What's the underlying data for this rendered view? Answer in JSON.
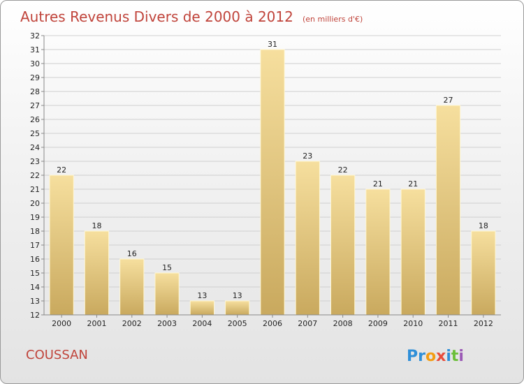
{
  "title": "Autres Revenus Divers de 2000 à 2012",
  "subtitle": "(en milliers d'€)",
  "place": "COUSSAN",
  "brand": {
    "name": "Proxiti",
    "letters": [
      {
        "ch": "P",
        "color": "#2f8fd8"
      },
      {
        "ch": "r",
        "color": "#2f8fd8"
      },
      {
        "ch": "o",
        "color": "#f39c12"
      },
      {
        "ch": "x",
        "color": "#e74c3c"
      },
      {
        "ch": "i",
        "color": "#2f8fd8"
      },
      {
        "ch": "t",
        "color": "#6cbf3a"
      },
      {
        "ch": "i",
        "color": "#9b59b6"
      }
    ]
  },
  "colors": {
    "title": "#c0443b",
    "bar_top": "#f6df9e",
    "bar_bottom": "#c9a95e",
    "bar_edge": "#fff6cf",
    "grid": "#cfcfcf",
    "axis": "#888888"
  },
  "chart_data": {
    "type": "bar",
    "categories": [
      "2000",
      "2001",
      "2002",
      "2003",
      "2004",
      "2005",
      "2006",
      "2007",
      "2008",
      "2009",
      "2010",
      "2011",
      "2012"
    ],
    "values": [
      22,
      18,
      16,
      15,
      13,
      13,
      31,
      23,
      22,
      21,
      21,
      27,
      18
    ],
    "title": "Autres Revenus Divers de 2000 à 2012",
    "subtitle": "(en milliers d'€)",
    "xlabel": "",
    "ylabel": "",
    "ylim": [
      12,
      32
    ],
    "y_ticks": [
      12,
      13,
      14,
      15,
      16,
      17,
      18,
      19,
      20,
      21,
      22,
      23,
      24,
      25,
      26,
      27,
      28,
      29,
      30,
      31,
      32
    ],
    "grid": true,
    "legend": "none"
  }
}
